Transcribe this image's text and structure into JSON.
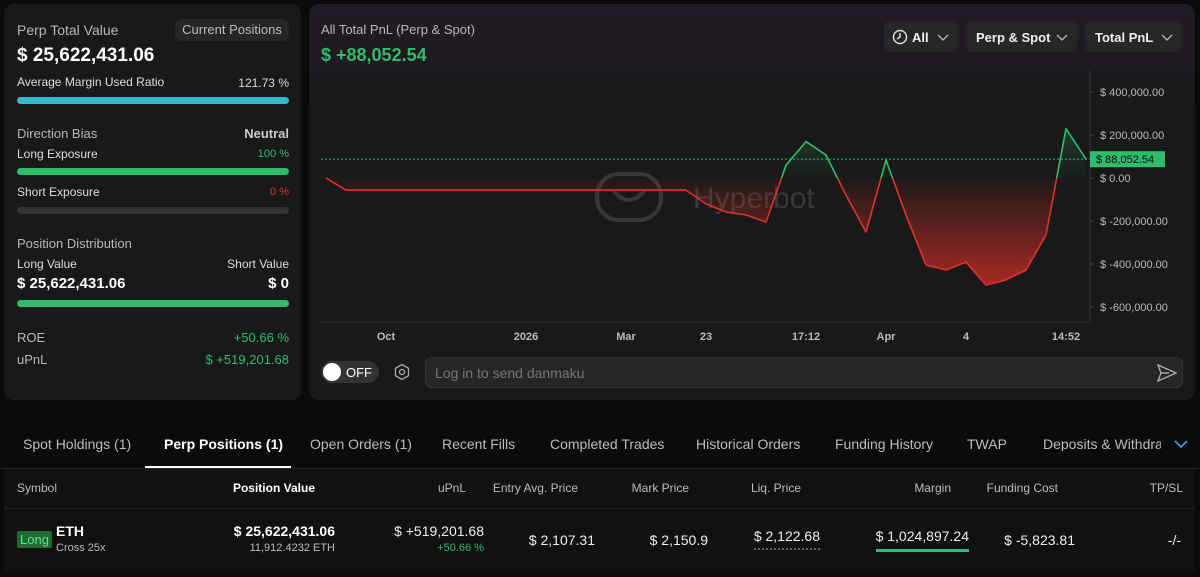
{
  "summary": {
    "title": "Perp Total Value",
    "button": "Current Positions",
    "value": "$ 25,622,431.06",
    "margin_label": "Average Margin Used Ratio",
    "margin_value": "121.73 %",
    "direction_label": "Direction Bias",
    "direction_value": "Neutral",
    "long_label": "Long Exposure",
    "long_value": "100 %",
    "short_label": "Short Exposure",
    "short_value": "0 %",
    "distribution_label": "Position Distribution",
    "long_value_label": "Long Value",
    "short_value_label": "Short Value",
    "long_amount": "$ 25,622,431.06",
    "short_amount": "$ 0",
    "roe_label": "ROE",
    "roe_value": "+50.66 %",
    "upnl_label": "uPnL",
    "upnl_value": "$ +519,201.68"
  },
  "chart_data": {
    "type": "line",
    "title": "All Total PnL (Perp & Spot)",
    "value_label": "$ +88,052.54",
    "filters": [
      "All",
      "Perp & Spot",
      "Total PnL"
    ],
    "watermark": "Hyperbot",
    "categories": [
      null,
      null,
      null,
      "Oct",
      null,
      null,
      null,
      null,
      null,
      null,
      "2026",
      null,
      null,
      null,
      null,
      "Mar",
      null,
      null,
      null,
      "23",
      null,
      null,
      null,
      null,
      "17:12",
      null,
      null,
      null,
      "Apr",
      null,
      null,
      null,
      "4",
      null,
      null,
      null,
      null,
      "14:52",
      null
    ],
    "values": [
      0,
      -56000,
      -56000,
      -56000,
      -56000,
      -56000,
      -56000,
      -56000,
      -56000,
      -56000,
      -56000,
      -56000,
      -56000,
      -56000,
      -56000,
      -56000,
      -56000,
      -56000,
      -56000,
      -120000,
      -158000,
      -172000,
      -205000,
      60000,
      170000,
      107000,
      -79000,
      -251000,
      84000,
      -172000,
      -405000,
      -428000,
      -391000,
      -498000,
      -474000,
      -428000,
      -265000,
      230000,
      88052.54
    ],
    "ylim": [
      -670000,
      480000
    ],
    "yticks": [
      {
        "value": 400000,
        "label": "$ 400,000.00"
      },
      {
        "value": 200000,
        "label": "$ 200,000.00"
      },
      {
        "value": 0,
        "label": "$ 0.00"
      },
      {
        "value": -200000,
        "label": "$ -200,000.00"
      },
      {
        "value": -400000,
        "label": "$ -400,000.00"
      },
      {
        "value": -600000,
        "label": "$ -600,000.00"
      }
    ],
    "current": {
      "value": 88052.54,
      "label": "$ 88,052.54"
    },
    "colors": {
      "up": "#2ebd6b",
      "down": "#e0302a"
    }
  },
  "controls": {
    "toggle": "OFF",
    "placeholder": "Log in to send danmaku"
  },
  "tabs": [
    "Spot Holdings (1)",
    "Perp Positions (1)",
    "Open Orders (1)",
    "Recent Fills",
    "Completed Trades",
    "Historical Orders",
    "Funding History",
    "TWAP",
    "Deposits & Withdraw"
  ],
  "table": {
    "headers": [
      "Symbol",
      "Position Value",
      "uPnL",
      "Entry Avg. Price",
      "Mark Price",
      "Liq. Price",
      "Margin",
      "Funding Cost",
      "TP/SL"
    ],
    "rows": [
      {
        "side": "Long",
        "symbol": "ETH",
        "mode": "Cross 25x",
        "position_value": "$ 25,622,431.06",
        "size": "11,912.4232 ETH",
        "upnl": "$ +519,201.68",
        "roe": "+50.66 %",
        "entry": "$ 2,107.31",
        "mark": "$ 2,150.9",
        "liq": "$ 2,122.68",
        "margin": "$ 1,024,897.24",
        "funding": "$ -5,823.81",
        "tpsl": "-/-"
      }
    ]
  }
}
